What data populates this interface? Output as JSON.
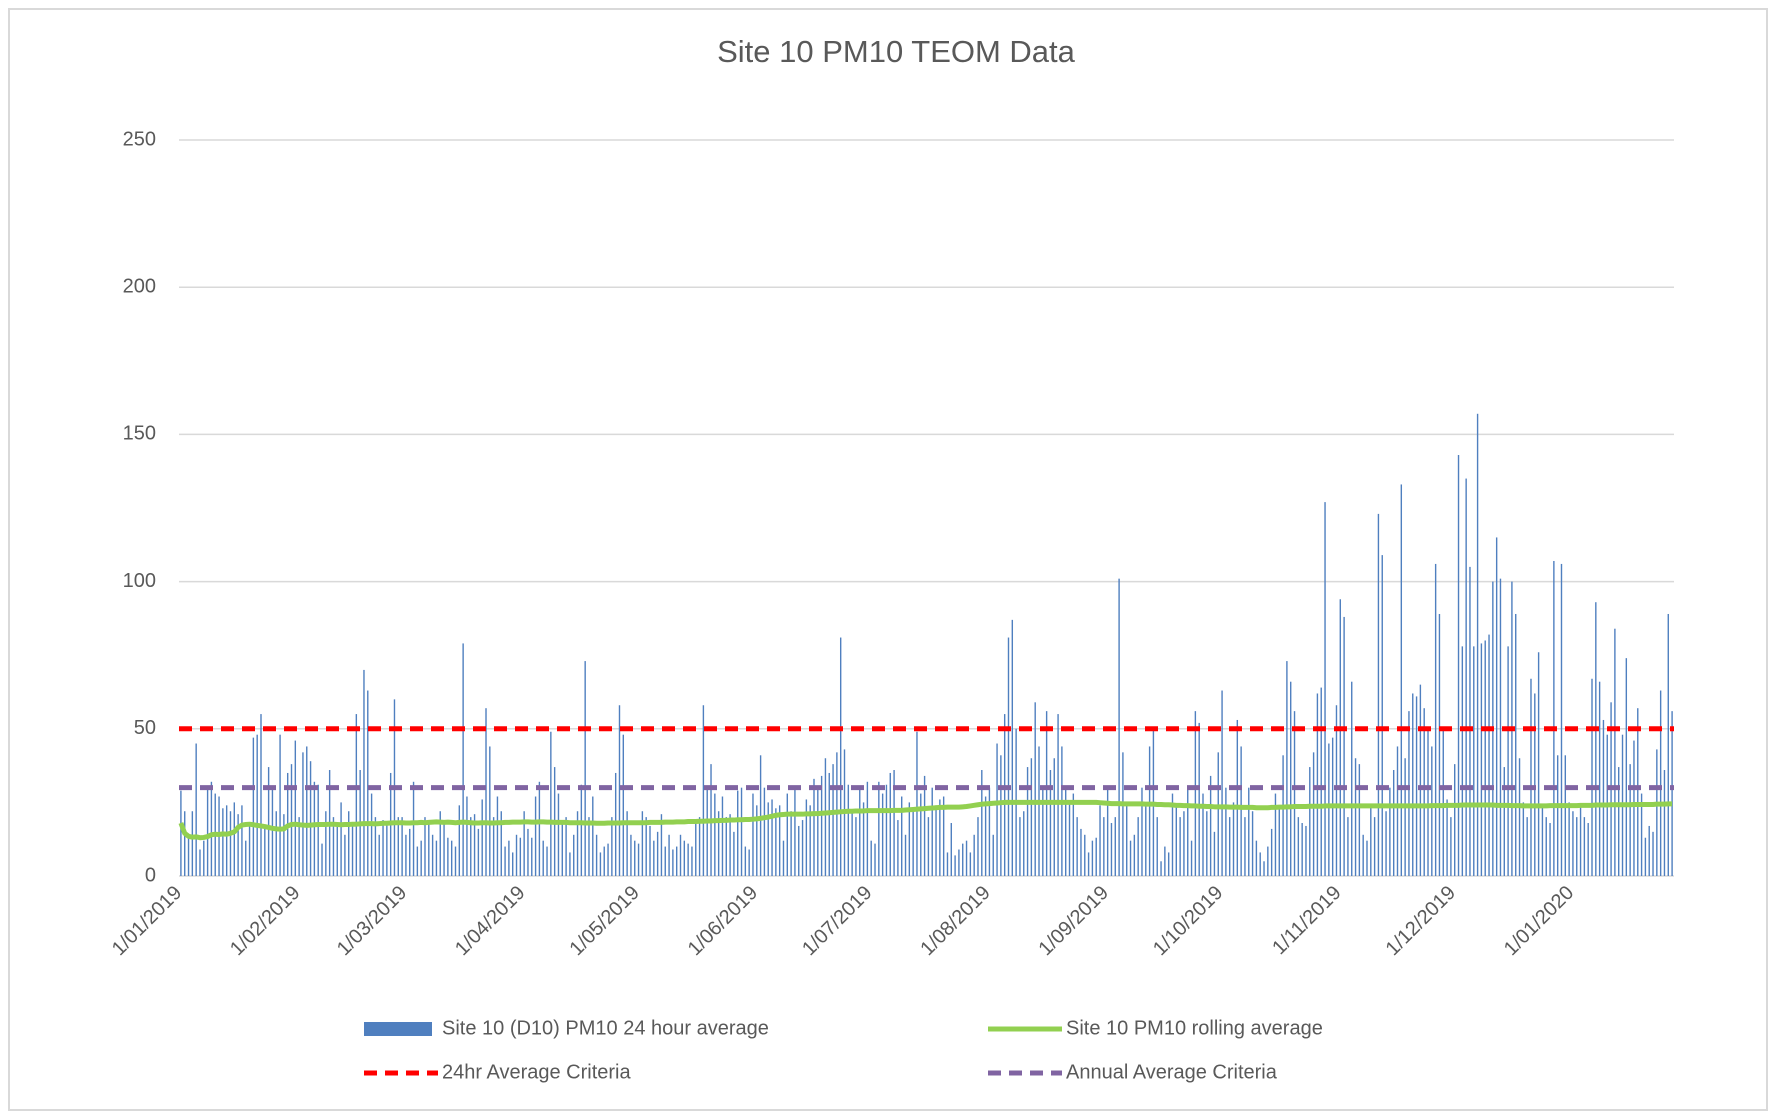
{
  "chart_data": {
    "type": "bar",
    "title": "Site 10 PM10 TEOM Data",
    "ylim": [
      0,
      250
    ],
    "yticks": [
      0,
      50,
      100,
      150,
      200,
      250
    ],
    "grid": true,
    "legend": "bottom",
    "categories": [
      "1/01/2019",
      null,
      null,
      null,
      null,
      null,
      null,
      null,
      null,
      null,
      null,
      null,
      null,
      null,
      null,
      null,
      null,
      null,
      null,
      null,
      null,
      null,
      null,
      null,
      null,
      null,
      null,
      null,
      null,
      null,
      null,
      "1/02/2019",
      null,
      null,
      null,
      null,
      null,
      null,
      null,
      null,
      null,
      null,
      null,
      null,
      null,
      null,
      null,
      null,
      null,
      null,
      null,
      null,
      null,
      null,
      null,
      null,
      null,
      null,
      null,
      "1/03/2019",
      null,
      null,
      null,
      null,
      null,
      null,
      null,
      null,
      null,
      null,
      null,
      null,
      null,
      null,
      null,
      null,
      null,
      null,
      null,
      null,
      null,
      null,
      null,
      null,
      null,
      null,
      null,
      null,
      null,
      null,
      "1/04/2019",
      null,
      null,
      null,
      null,
      null,
      null,
      null,
      null,
      null,
      null,
      null,
      null,
      null,
      null,
      null,
      null,
      null,
      null,
      null,
      null,
      null,
      null,
      null,
      null,
      null,
      null,
      null,
      null,
      null,
      "1/05/2019",
      null,
      null,
      null,
      null,
      null,
      null,
      null,
      null,
      null,
      null,
      null,
      null,
      null,
      null,
      null,
      null,
      null,
      null,
      null,
      null,
      null,
      null,
      null,
      null,
      null,
      null,
      null,
      null,
      null,
      null,
      "1/06/2019",
      null,
      null,
      null,
      null,
      null,
      null,
      null,
      null,
      null,
      null,
      null,
      null,
      null,
      null,
      null,
      null,
      null,
      null,
      null,
      null,
      null,
      null,
      null,
      null,
      null,
      null,
      null,
      null,
      null,
      "1/07/2019",
      null,
      null,
      null,
      null,
      null,
      null,
      null,
      null,
      null,
      null,
      null,
      null,
      null,
      null,
      null,
      null,
      null,
      null,
      null,
      null,
      null,
      null,
      null,
      null,
      null,
      null,
      null,
      null,
      null,
      null,
      "1/08/2019",
      null,
      null,
      null,
      null,
      null,
      null,
      null,
      null,
      null,
      null,
      null,
      null,
      null,
      null,
      null,
      null,
      null,
      null,
      null,
      null,
      null,
      null,
      null,
      null,
      null,
      null,
      null,
      null,
      null,
      null,
      "1/09/2019",
      null,
      null,
      null,
      null,
      null,
      null,
      null,
      null,
      null,
      null,
      null,
      null,
      null,
      null,
      null,
      null,
      null,
      null,
      null,
      null,
      null,
      null,
      null,
      null,
      null,
      null,
      null,
      null,
      null,
      "1/10/2019",
      null,
      null,
      null,
      null,
      null,
      null,
      null,
      null,
      null,
      null,
      null,
      null,
      null,
      null,
      null,
      null,
      null,
      null,
      null,
      null,
      null,
      null,
      null,
      null,
      null,
      null,
      null,
      null,
      null,
      null,
      "1/11/2019",
      null,
      null,
      null,
      null,
      null,
      null,
      null,
      null,
      null,
      null,
      null,
      null,
      null,
      null,
      null,
      null,
      null,
      null,
      null,
      null,
      null,
      null,
      null,
      null,
      null,
      null,
      null,
      null,
      null,
      "1/12/2019",
      null,
      null,
      null,
      null,
      null,
      null,
      null,
      null,
      null,
      null,
      null,
      null,
      null,
      null,
      null,
      null,
      null,
      null,
      null,
      null,
      null,
      null,
      null,
      null,
      null,
      null,
      null,
      null,
      null,
      null,
      "1/01/2020",
      null,
      null,
      null,
      null,
      null,
      null,
      null,
      null,
      null,
      null,
      null,
      null,
      null,
      null,
      null,
      null,
      null,
      null,
      null,
      null,
      null,
      null,
      null,
      null,
      null,
      null
    ],
    "series": [
      {
        "name": "Site 10 (D10) PM10 24 hour average",
        "type": "bar",
        "color": "#4f7fbf",
        "values": [
          29,
          22,
          14,
          22,
          45,
          9,
          12,
          30,
          32,
          28,
          27,
          23,
          24,
          22,
          25,
          21,
          24,
          12,
          18,
          47,
          48,
          55,
          16,
          37,
          30,
          22,
          48,
          21,
          35,
          38,
          46,
          20,
          42,
          44,
          39,
          32,
          31,
          11,
          22,
          36,
          20,
          18,
          25,
          14,
          22,
          18,
          55,
          36,
          70,
          63,
          28,
          20,
          14,
          19,
          18,
          35,
          60,
          20,
          20,
          14,
          16,
          32,
          10,
          12,
          20,
          18,
          14,
          12,
          22,
          18,
          13,
          12,
          10,
          24,
          79,
          27,
          20,
          21,
          16,
          26,
          57,
          44,
          20,
          27,
          22,
          10,
          12,
          8,
          14,
          13,
          22,
          16,
          13,
          27,
          32,
          12,
          10,
          49,
          37,
          28,
          18,
          20,
          8,
          14,
          22,
          31,
          73,
          20,
          27,
          14,
          8,
          10,
          11,
          20,
          35,
          58,
          48,
          22,
          14,
          12,
          11,
          22,
          20,
          17,
          12,
          15,
          21,
          10,
          14,
          9,
          10,
          14,
          12,
          11,
          10,
          19,
          20,
          58,
          30,
          38,
          28,
          22,
          27,
          20,
          21,
          15,
          29,
          30,
          10,
          9,
          28,
          24,
          41,
          30,
          25,
          26,
          23,
          24,
          12,
          28,
          22,
          30,
          17,
          19,
          26,
          24,
          33,
          30,
          34,
          40,
          35,
          38,
          42,
          81,
          43,
          31,
          22,
          20,
          30,
          25,
          32,
          12,
          11,
          32,
          28,
          31,
          35,
          36,
          19,
          27,
          14,
          25,
          23,
          49,
          28,
          34,
          20,
          30,
          24,
          26,
          27,
          8,
          18,
          7,
          9,
          11,
          12,
          8,
          14,
          20,
          36,
          27,
          30,
          14,
          45,
          41,
          55,
          81,
          87,
          50,
          20,
          22,
          37,
          40,
          59,
          44,
          30,
          56,
          36,
          40,
          55,
          44,
          30,
          25,
          28,
          20,
          16,
          14,
          8,
          12,
          13,
          24,
          20,
          30,
          18,
          20,
          101,
          42,
          24,
          12,
          14,
          20,
          30,
          24,
          44,
          50,
          20,
          5,
          10,
          8,
          28,
          24,
          20,
          22,
          30,
          12,
          56,
          52,
          28,
          22,
          34,
          15,
          42,
          63,
          30,
          20,
          25,
          53,
          44,
          20,
          30,
          22,
          12,
          8,
          5,
          10,
          16,
          28,
          24,
          41,
          73,
          66,
          56,
          20,
          18,
          17,
          37,
          42,
          62,
          64,
          127,
          45,
          47,
          58,
          94,
          88,
          20,
          66,
          40,
          38,
          14,
          12,
          24,
          20,
          123,
          109,
          22,
          30,
          36,
          44,
          133,
          40,
          56,
          62,
          61,
          65,
          57,
          50,
          44,
          106,
          89,
          50,
          26,
          20,
          38,
          143,
          78,
          135,
          105,
          78,
          157,
          79,
          80,
          82,
          100,
          115,
          101,
          37,
          78,
          100,
          89,
          40,
          25,
          20,
          67,
          62,
          76,
          24,
          20,
          18,
          107,
          41,
          106,
          41,
          25,
          22,
          20,
          24,
          20,
          18,
          67,
          93,
          66,
          53,
          48,
          59,
          84,
          37,
          48,
          74,
          38,
          46,
          57,
          28,
          13,
          17,
          15,
          43,
          63,
          36,
          89,
          56
        ]
      },
      {
        "name": "Site 10 PM10 rolling average",
        "type": "line",
        "color": "#92d050",
        "values": [
          18.0,
          14.5,
          13.5,
          13.2,
          13.3,
          13.0,
          13.1,
          13.4,
          14.0,
          14.2,
          14.1,
          14.3,
          14.2,
          14.5,
          15.0,
          16.5,
          17.3,
          17.5,
          17.6,
          17.4,
          17.2,
          17.0,
          16.8,
          16.5,
          16.2,
          16.0,
          15.9,
          16.0,
          17.0,
          17.5,
          17.6,
          17.4,
          17.3,
          17.2,
          17.3,
          17.4,
          17.5,
          17.5,
          17.5,
          17.6,
          17.6,
          17.5,
          17.4,
          17.5,
          17.5,
          17.6,
          17.6,
          17.7,
          17.8,
          17.8,
          17.8,
          17.7,
          17.8,
          17.9,
          17.9,
          18.0,
          18.1,
          18.1,
          18.1,
          18.0,
          18.0,
          18.1,
          18.1,
          18.2,
          18.1,
          18.2,
          18.3,
          18.4,
          18.3,
          18.2,
          18.3,
          18.2,
          18.1,
          18.2,
          18.3,
          18.2,
          18.1,
          18.0,
          18.0,
          18.1,
          18.1,
          18.0,
          18.0,
          18.1,
          18.1,
          18.2,
          18.2,
          18.3,
          18.3,
          18.3,
          18.4,
          18.4,
          18.3,
          18.3,
          18.4,
          18.4,
          18.3,
          18.3,
          18.2,
          18.2,
          18.2,
          18.2,
          18.1,
          18.1,
          18.1,
          18.1,
          18.0,
          18.0,
          18.0,
          17.9,
          17.9,
          17.9,
          18.0,
          18.0,
          18.0,
          18.0,
          18.1,
          18.1,
          18.1,
          18.1,
          18.1,
          18.1,
          18.1,
          18.2,
          18.2,
          18.2,
          18.2,
          18.3,
          18.3,
          18.3,
          18.4,
          18.4,
          18.4,
          18.5,
          18.5,
          18.5,
          18.6,
          18.6,
          18.7,
          18.7,
          18.8,
          18.8,
          18.9,
          18.9,
          19.0,
          19.0,
          19.1,
          19.1,
          19.2,
          19.2,
          19.3,
          19.4,
          19.6,
          19.8,
          20.0,
          20.3,
          20.6,
          20.8,
          20.9,
          21.0,
          21.0,
          21.0,
          21.0,
          21.0,
          21.1,
          21.1,
          21.2,
          21.2,
          21.3,
          21.4,
          21.5,
          21.6,
          21.7,
          21.8,
          21.9,
          22.0,
          22.0,
          22.1,
          22.1,
          22.1,
          22.2,
          22.2,
          22.2,
          22.2,
          22.2,
          22.2,
          22.2,
          22.3,
          22.3,
          22.3,
          22.4,
          22.5,
          22.6,
          22.7,
          22.8,
          22.9,
          23.0,
          23.1,
          23.2,
          23.3,
          23.3,
          23.4,
          23.4,
          23.4,
          23.4,
          23.5,
          23.6,
          23.8,
          24.0,
          24.2,
          24.4,
          24.5,
          24.6,
          24.7,
          24.8,
          24.9,
          25.0,
          25.0,
          25.0,
          25.0,
          25.0,
          25.0,
          25.0,
          25.0,
          25.0,
          25.0,
          25.0,
          25.0,
          25.0,
          25.0,
          25.0,
          25.0,
          25.0,
          25.0,
          25.0,
          25.0,
          25.0,
          25.0,
          25.0,
          25.0,
          25.0,
          24.9,
          24.8,
          24.7,
          24.6,
          24.6,
          24.6,
          24.5,
          24.5,
          24.5,
          24.5,
          24.5,
          24.5,
          24.4,
          24.4,
          24.4,
          24.3,
          24.3,
          24.2,
          24.2,
          24.1,
          24.0,
          24.0,
          23.9,
          23.9,
          23.8,
          23.8,
          23.7,
          23.7,
          23.6,
          23.6,
          23.5,
          23.5,
          23.5,
          23.5,
          23.4,
          23.4,
          23.4,
          23.3,
          23.3,
          23.3,
          23.3,
          23.2,
          23.2,
          23.2,
          23.2,
          23.3,
          23.3,
          23.4,
          23.4,
          23.5,
          23.5,
          23.6,
          23.6,
          23.6,
          23.6,
          23.7,
          23.7,
          23.7,
          23.7,
          23.8,
          23.8,
          23.8,
          23.8,
          23.8,
          23.8,
          23.8,
          23.8,
          23.8,
          23.8,
          23.8,
          23.8,
          23.8,
          23.8,
          23.8,
          23.8,
          23.8,
          23.8,
          23.8,
          23.8,
          23.8,
          23.8,
          23.8,
          23.8,
          23.8,
          23.8,
          23.8,
          23.8,
          23.9,
          23.9,
          23.9,
          23.9,
          24.0,
          24.0,
          24.0,
          24.0,
          24.1,
          24.1,
          24.1,
          24.1,
          24.1,
          24.1,
          24.1,
          24.1,
          24.1,
          24.0,
          24.0,
          24.0,
          24.0,
          23.9,
          23.9,
          23.9,
          23.8,
          23.8,
          23.8,
          23.8,
          23.8,
          23.8,
          23.8,
          23.9,
          23.9,
          23.9,
          23.9,
          23.9,
          23.9,
          23.9,
          23.9,
          24.0,
          24.0,
          24.0,
          24.0,
          24.1,
          24.1,
          24.1,
          24.1,
          24.2,
          24.2,
          24.2,
          24.2,
          24.2,
          24.2,
          24.3,
          24.3,
          24.3,
          24.3,
          24.3,
          24.3,
          24.4,
          24.4,
          24.4,
          24.5,
          24.5
        ]
      },
      {
        "name": "24hr Average Criteria",
        "type": "hline",
        "color": "#ff0000",
        "value": 50
      },
      {
        "name": "Annual Average Criteria",
        "type": "hline",
        "color": "#8064a2",
        "value": 30
      }
    ]
  }
}
